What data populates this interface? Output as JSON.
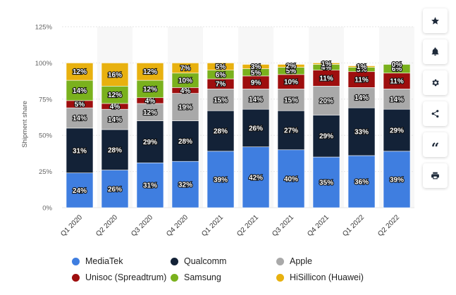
{
  "chart_data": {
    "type": "stacked-bar",
    "ylabel": "Shipment share",
    "xlabel": "",
    "ylim": [
      0,
      125
    ],
    "yticks": [
      "0%",
      "25%",
      "50%",
      "75%",
      "100%",
      "125%"
    ],
    "categories": [
      "Q1 2020",
      "Q2 2020",
      "Q3 2020",
      "Q4 2020",
      "Q1 2021",
      "Q2 2021",
      "Q3 2021",
      "Q4 2021",
      "Q1 2022",
      "Q2 2022"
    ],
    "series": [
      {
        "name": "MediaTek",
        "color": "#3f7ee0",
        "values": [
          24,
          26,
          31,
          32,
          39,
          42,
          40,
          35,
          36,
          39
        ],
        "labels": [
          "24%",
          "26%",
          "31%",
          "32%",
          "39%",
          "42%",
          "40%",
          "35%",
          "36%",
          "39%"
        ]
      },
      {
        "name": "Qualcomm",
        "color": "#132237",
        "values": [
          31,
          28,
          29,
          28,
          28,
          26,
          27,
          29,
          33,
          29
        ],
        "labels": [
          "31%",
          "28%",
          "29%",
          "28%",
          "28%",
          "26%",
          "27%",
          "29%",
          "33%",
          "29%"
        ]
      },
      {
        "name": "Apple",
        "color": "#a9a9a9",
        "values": [
          14,
          14,
          12,
          19,
          15,
          14,
          15,
          20,
          14,
          14
        ],
        "labels": [
          "14%",
          "14%",
          "12%",
          "19%",
          "15%",
          "14%",
          "15%",
          "20%",
          "14%",
          "14%"
        ]
      },
      {
        "name": "Unisoc (Spreadtrum)",
        "color": "#9e0e0e",
        "values": [
          5,
          4,
          4,
          4,
          7,
          9,
          10,
          11,
          11,
          11
        ],
        "labels": [
          "5%",
          "4%",
          "4%",
          "4%",
          "7%",
          "9%",
          "10%",
          "11%",
          "11%",
          "11%"
        ]
      },
      {
        "name": "Samsung",
        "color": "#7ab11d",
        "values": [
          14,
          12,
          12,
          10,
          6,
          5,
          5,
          4,
          3,
          6
        ],
        "labels": [
          "14%",
          "12%",
          "12%",
          "10%",
          "6%",
          "5%",
          "5%",
          "4%",
          "3%",
          "6%"
        ]
      },
      {
        "name": "HiSillicon (Huawei)",
        "color": "#e8b10f",
        "values": [
          12,
          16,
          12,
          7,
          5,
          3,
          2,
          1,
          1,
          0
        ],
        "labels": [
          "12%",
          "16%",
          "12%",
          "7%",
          "5%",
          "3%",
          "2%",
          "1%",
          "1%",
          "0%"
        ]
      }
    ]
  },
  "toolbar": {
    "items": [
      {
        "name": "star-icon"
      },
      {
        "name": "bell-icon"
      },
      {
        "name": "gear-icon"
      },
      {
        "name": "share-icon"
      },
      {
        "name": "quote-icon",
        "glyph": "“"
      },
      {
        "name": "print-icon"
      }
    ]
  },
  "colors": {
    "grid": "#e6e6e6",
    "axis_text": "#666666",
    "band": "#f7f7f7"
  }
}
